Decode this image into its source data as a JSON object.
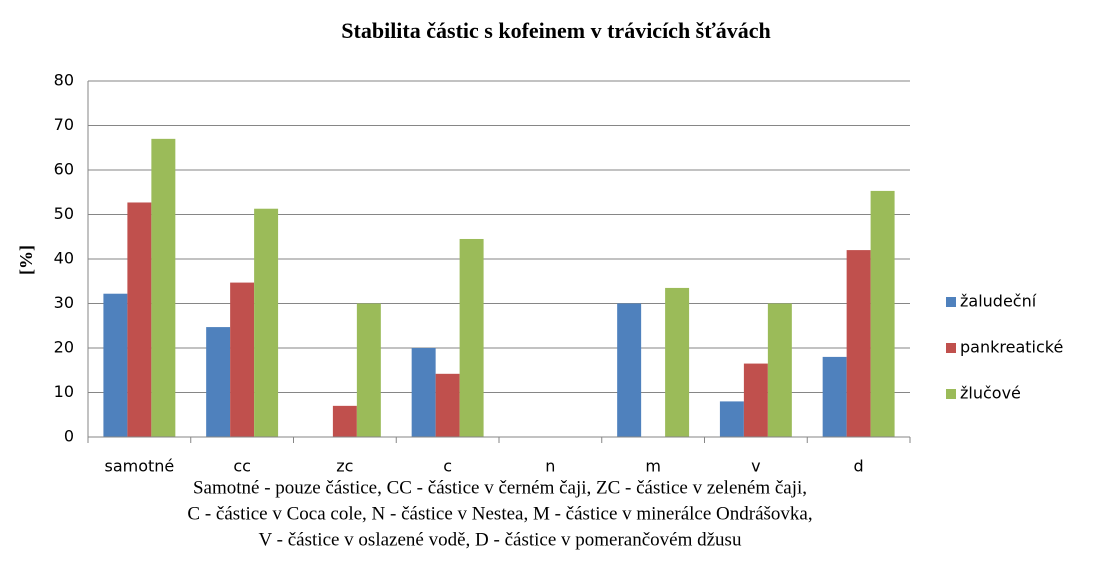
{
  "chart_data": {
    "type": "bar",
    "title": "Stabilita částic s kofeinem v trávicích šťávách",
    "y_label": "[%]",
    "categories": [
      "samotné",
      "cc",
      "zc",
      "c",
      "n",
      "m",
      "v",
      "d"
    ],
    "series": [
      {
        "name": "žaludeční",
        "color": "#4f81bd",
        "values": [
          32.2,
          24.7,
          0,
          20,
          0,
          30,
          8,
          18
        ]
      },
      {
        "name": "pankreatické",
        "color": "#c0504d",
        "values": [
          52.7,
          34.7,
          7,
          14.2,
          0,
          0,
          16.5,
          42
        ]
      },
      {
        "name": "žlučové",
        "color": "#9bbb59",
        "values": [
          67,
          51.3,
          30,
          44.5,
          0,
          33.5,
          30,
          55.3
        ]
      }
    ],
    "ylim": [
      0,
      80
    ],
    "yticks": [
      0,
      10,
      20,
      30,
      40,
      50,
      60,
      70,
      80
    ],
    "grid": true,
    "legend": "right",
    "footnote": [
      "Samotné - pouze částice, CC - částice v černém čaji, ZC - částice v zeleném čaji,",
      "C - částice v Coca cole, N - částice v Nestea, M - částice v minerálce Ondrášovka,",
      "V - částice v oslazené vodě, D - částice v pomerančovém džusu"
    ]
  }
}
